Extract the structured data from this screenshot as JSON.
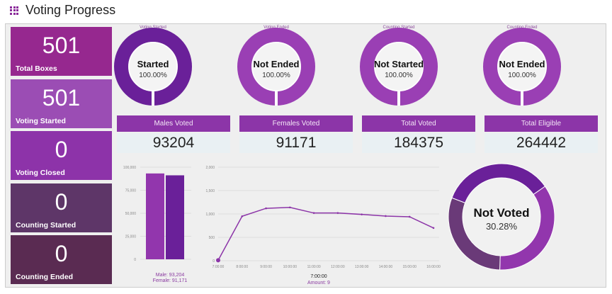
{
  "title": "Voting Progress",
  "tiles": [
    {
      "value": "501",
      "label": "Total Boxes",
      "color": "#96288f"
    },
    {
      "value": "501",
      "label": "Voting Started",
      "color": "#9b4db4"
    },
    {
      "value": "0",
      "label": "Voting Closed",
      "color": "#8d33a9"
    },
    {
      "value": "0",
      "label": "Counting Started",
      "color": "#5e3668"
    },
    {
      "value": "0",
      "label": "Counting Ended",
      "color": "#5a2b52"
    }
  ],
  "donuts": [
    {
      "caption": "Voting Started",
      "status": "Started",
      "percent": "100.00%",
      "color": "#6a2099"
    },
    {
      "caption": "Voting Ended",
      "status": "Not Ended",
      "percent": "100.00%",
      "color": "#9a3fb4"
    },
    {
      "caption": "Counting Started",
      "status": "Not Started",
      "percent": "100.00%",
      "color": "#9a3fb4"
    },
    {
      "caption": "Counting Ended",
      "status": "Not Ended",
      "percent": "100.00%",
      "color": "#9a3fb4"
    }
  ],
  "stats": [
    {
      "label": "Males Voted",
      "value": "93204"
    },
    {
      "label": "Females Voted",
      "value": "91171"
    },
    {
      "label": "Total Voted",
      "value": "184375"
    },
    {
      "label": "Total Eligible",
      "value": "264442"
    }
  ],
  "chart_data": [
    {
      "type": "bar",
      "categories": [
        "Male",
        "Female"
      ],
      "values": [
        93204,
        91171
      ],
      "ylim": [
        0,
        100000
      ],
      "yticks": [
        "0",
        "25,000",
        "50,000",
        "75,000",
        "100,000"
      ],
      "colors": [
        "#9236ad",
        "#6a2099"
      ],
      "legend": [
        "Male: 93,204",
        "Female: 91,171"
      ]
    },
    {
      "type": "line",
      "x": [
        "7:00:00",
        "8:00:00",
        "9:00:00",
        "10:00:00",
        "11:00:00",
        "12:00:00",
        "13:00:00",
        "14:00:00",
        "15:00:00",
        "16:00:00"
      ],
      "values": [
        9,
        950,
        1120,
        1140,
        1020,
        1020,
        990,
        955,
        940,
        700
      ],
      "ylim": [
        0,
        2000
      ],
      "yticks": [
        "0",
        "500",
        "1,000",
        "1,500",
        "2,000"
      ],
      "color": "#8c35a8",
      "tooltip": {
        "x": "7:00:00",
        "label": "Amount: 9"
      }
    },
    {
      "type": "pie",
      "status": "Not Voted",
      "percent": "30.28%",
      "slices": [
        {
          "value": 93204,
          "color": "#9236ad"
        },
        {
          "value": 80067,
          "color": "#6a3a78"
        },
        {
          "value": 91171,
          "color": "#6a2099"
        }
      ]
    }
  ]
}
